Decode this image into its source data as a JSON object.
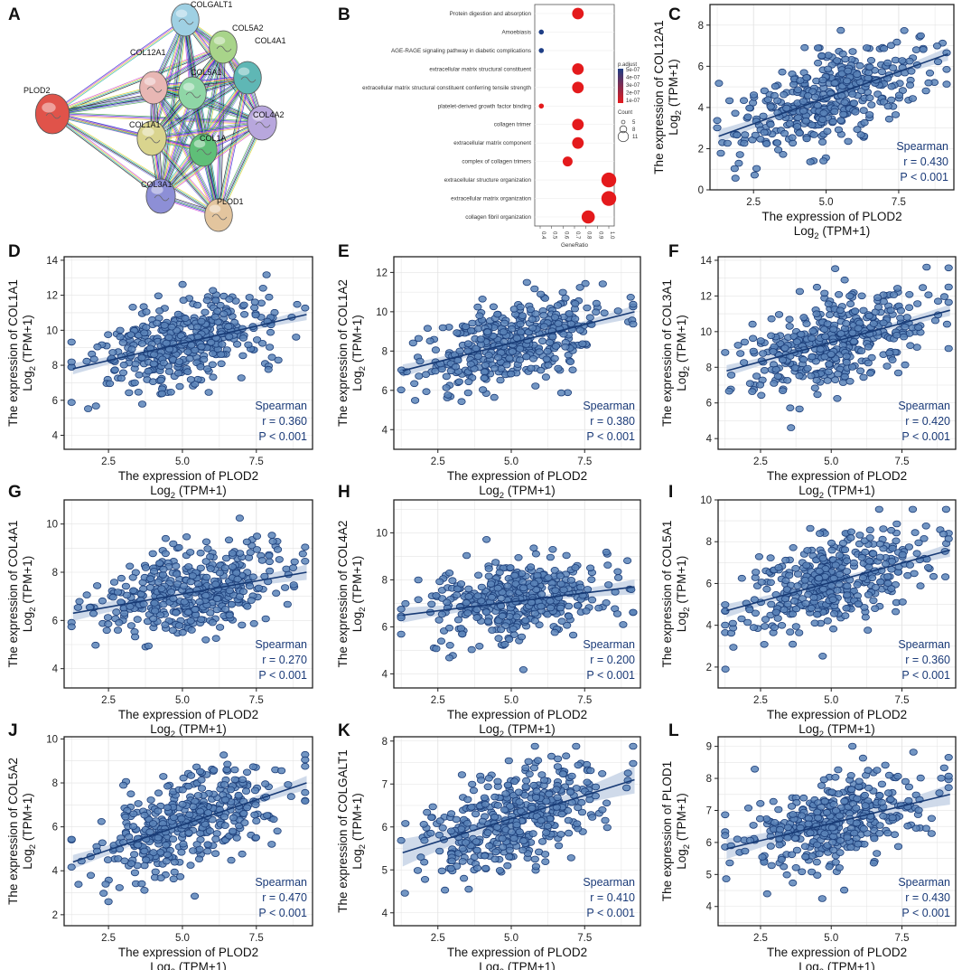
{
  "panel_labels": [
    "A",
    "B",
    "C",
    "D",
    "E",
    "F",
    "G",
    "H",
    "I",
    "J",
    "K",
    "L"
  ],
  "network": {
    "nodes": [
      {
        "name": "PLOD2",
        "color": "#e0534a"
      },
      {
        "name": "COLGALT1",
        "color": "#9fd0e3"
      },
      {
        "name": "COL5A2",
        "color": "#a8d48a"
      },
      {
        "name": "COL12A1",
        "color": "#e8b7b4"
      },
      {
        "name": "COL5A1",
        "color": "#8fd6a6"
      },
      {
        "name": "COL4A1",
        "color": "#5fb7b5"
      },
      {
        "name": "COL1A1",
        "color": "#d9d48e"
      },
      {
        "name": "COL4A2",
        "color": "#b8a7dd"
      },
      {
        "name": "COL1A",
        "color": "#5fbf78"
      },
      {
        "name": "COL3A1",
        "color": "#8d8fd6"
      },
      {
        "name": "PLOD1",
        "color": "#e3c59e"
      }
    ],
    "edge_colors": [
      "#3aa03a",
      "#2a2ad0",
      "#d040d0",
      "#e0d020",
      "#20b0b0",
      "#111111",
      "#7070e0"
    ]
  },
  "chart_data": [
    {
      "panel": "B",
      "type": "scatter",
      "subtype": "dotplot",
      "xlabel": "GeneRatio",
      "x_ticks": [
        "0.4",
        "0.5",
        "0.6",
        "0.7",
        "0.8",
        "0.9",
        "1.0"
      ],
      "xlim": [
        0.4,
        1.0
      ],
      "terms": [
        {
          "label": "Protein digestion and absorption",
          "ratio": 0.73,
          "count": 9,
          "p_level": "low"
        },
        {
          "label": "Amoebiasis",
          "ratio": 0.41,
          "count": 5,
          "p_level": "high"
        },
        {
          "label": "AGE-RAGE signaling pathway in diabetic complications",
          "ratio": 0.41,
          "count": 5,
          "p_level": "high"
        },
        {
          "label": "extracellular matrix structural constituent",
          "ratio": 0.73,
          "count": 9,
          "p_level": "low"
        },
        {
          "label": "extracellular matrix structural constituent conferring tensile strength",
          "ratio": 0.73,
          "count": 9,
          "p_level": "low"
        },
        {
          "label": "platelet-derived growth factor binding",
          "ratio": 0.41,
          "count": 5,
          "p_level": "low"
        },
        {
          "label": "collagen trimer",
          "ratio": 0.73,
          "count": 9,
          "p_level": "low"
        },
        {
          "label": "extracellular matrix component",
          "ratio": 0.73,
          "count": 9,
          "p_level": "low"
        },
        {
          "label": "complex of collagen trimers",
          "ratio": 0.64,
          "count": 8,
          "p_level": "low"
        },
        {
          "label": "extracellular structure organization",
          "ratio": 1.0,
          "count": 11,
          "p_level": "low"
        },
        {
          "label": "extracellular matrix organization",
          "ratio": 1.0,
          "count": 11,
          "p_level": "low"
        },
        {
          "label": "collagen fibril organization",
          "ratio": 0.82,
          "count": 10,
          "p_level": "low"
        }
      ],
      "legend_padj_title": "p.adjust",
      "legend_padj_ticks": [
        "5e-07",
        "4e-07",
        "3e-07",
        "2e-07",
        "1e-07"
      ],
      "legend_count_title": "Count",
      "legend_count_ticks": [
        "5",
        "8",
        "11"
      ]
    },
    {
      "panel": "C",
      "type": "scatter",
      "gene": "COL12A1",
      "ylabel": "The expression of COL12A1",
      "ylim": [
        0,
        9
      ],
      "y_ticks": [
        "0",
        "2",
        "4",
        "6",
        "8"
      ],
      "x_ticks": [
        "2.5",
        "5.0",
        "7.5"
      ],
      "xlim": [
        1,
        9.4
      ],
      "r": "r = 0.430",
      "p": "P < 0.001",
      "method": "Spearman",
      "fit": {
        "x0": 1.3,
        "y0": 2.6,
        "x1": 9.2,
        "y1": 6.6
      },
      "ymean": 4.4,
      "noise": 1.3
    },
    {
      "panel": "D",
      "type": "scatter",
      "gene": "COL1A1",
      "ylabel": "The expression of COL1A1",
      "ylim": [
        3.2,
        14.2
      ],
      "y_ticks": [
        "4",
        "6",
        "8",
        "10",
        "12",
        "14"
      ],
      "x_ticks": [
        "2.5",
        "5.0",
        "7.5"
      ],
      "xlim": [
        1,
        9.4
      ],
      "r": "r = 0.360",
      "p": "P < 0.001",
      "method": "Spearman",
      "fit": {
        "x0": 1.3,
        "y0": 7.8,
        "x1": 9.2,
        "y1": 10.9
      },
      "ymean": 9.3,
      "noise": 1.5
    },
    {
      "panel": "E",
      "type": "scatter",
      "gene": "COL1A2",
      "ylabel": "The expression of COL1A2",
      "ylim": [
        3.0,
        12.8
      ],
      "y_ticks": [
        "4",
        "6",
        "8",
        "10",
        "12"
      ],
      "x_ticks": [
        "2.5",
        "5.0",
        "7.5"
      ],
      "xlim": [
        1,
        9.4
      ],
      "r": "r = 0.380",
      "p": "P < 0.001",
      "method": "Spearman",
      "fit": {
        "x0": 1.3,
        "y0": 7.0,
        "x1": 9.2,
        "y1": 10.0
      },
      "ymean": 8.5,
      "noise": 1.3
    },
    {
      "panel": "F",
      "type": "scatter",
      "gene": "COL3A1",
      "ylabel": "The expression of COL3A1",
      "ylim": [
        3.4,
        14.2
      ],
      "y_ticks": [
        "4",
        "6",
        "8",
        "10",
        "12",
        "14"
      ],
      "x_ticks": [
        "2.5",
        "5.0",
        "7.5"
      ],
      "xlim": [
        1,
        9.4
      ],
      "r": "r = 0.420",
      "p": "P < 0.001",
      "method": "Spearman",
      "fit": {
        "x0": 1.3,
        "y0": 7.8,
        "x1": 9.2,
        "y1": 11.2
      },
      "ymean": 9.5,
      "noise": 1.4
    },
    {
      "panel": "G",
      "type": "scatter",
      "gene": "COL4A1",
      "ylabel": "The expression of COL4A1",
      "ylim": [
        3.2,
        11.0
      ],
      "y_ticks": [
        "4",
        "6",
        "8",
        "10"
      ],
      "x_ticks": [
        "2.5",
        "5.0",
        "7.5"
      ],
      "xlim": [
        1,
        9.4
      ],
      "r": "r = 0.270",
      "p": "P < 0.001",
      "method": "Spearman",
      "fit": {
        "x0": 1.3,
        "y0": 6.3,
        "x1": 9.2,
        "y1": 8.0
      },
      "ymean": 7.1,
      "noise": 1.0
    },
    {
      "panel": "H",
      "type": "scatter",
      "gene": "COL4A2",
      "ylabel": "The expression of COL4A2",
      "ylim": [
        3.4,
        11.4
      ],
      "y_ticks": [
        "4",
        "6",
        "8",
        "10"
      ],
      "x_ticks": [
        "2.5",
        "5.0",
        "7.5"
      ],
      "xlim": [
        1,
        9.4
      ],
      "r": "r = 0.200",
      "p": "P < 0.001",
      "method": "Spearman",
      "fit": {
        "x0": 1.3,
        "y0": 6.5,
        "x1": 9.2,
        "y1": 7.7
      },
      "ymean": 7.1,
      "noise": 1.0
    },
    {
      "panel": "I",
      "type": "scatter",
      "gene": "COL5A1",
      "ylabel": "The expression of COL5A1",
      "ylim": [
        1.0,
        10.0
      ],
      "y_ticks": [
        "2",
        "4",
        "6",
        "8",
        "10"
      ],
      "x_ticks": [
        "2.5",
        "5.0",
        "7.5"
      ],
      "xlim": [
        1,
        9.4
      ],
      "r": "r = 0.360",
      "p": "P < 0.001",
      "method": "Spearman",
      "fit": {
        "x0": 1.3,
        "y0": 4.7,
        "x1": 9.2,
        "y1": 7.6
      },
      "ymean": 6.1,
      "noise": 1.3
    },
    {
      "panel": "J",
      "type": "scatter",
      "gene": "COL5A2",
      "ylabel": "The expression of COL5A2",
      "ylim": [
        1.5,
        10.1
      ],
      "y_ticks": [
        "2",
        "4",
        "6",
        "8",
        "10"
      ],
      "x_ticks": [
        "2.5",
        "5.0",
        "7.5"
      ],
      "xlim": [
        1,
        9.4
      ],
      "r": "r = 0.470",
      "p": "P < 0.001",
      "method": "Spearman",
      "fit": {
        "x0": 1.3,
        "y0": 4.4,
        "x1": 9.2,
        "y1": 8.0
      },
      "ymean": 6.2,
      "noise": 1.3
    },
    {
      "panel": "K",
      "type": "scatter",
      "gene": "COLGALT1",
      "ylabel": "The expression of COLGALT1",
      "ylim": [
        3.7,
        8.1
      ],
      "y_ticks": [
        "4",
        "5",
        "6",
        "7",
        "8"
      ],
      "x_ticks": [
        "2.5",
        "5.0",
        "7.5"
      ],
      "xlim": [
        1,
        9.4
      ],
      "r": "r = 0.410",
      "p": "P < 0.001",
      "method": "Spearman",
      "fit": {
        "x0": 1.3,
        "y0": 5.4,
        "x1": 9.2,
        "y1": 7.1
      },
      "ymean": 6.3,
      "noise": 0.7
    },
    {
      "panel": "L",
      "type": "scatter",
      "gene": "PLOD1",
      "ylabel": "The expression of PLOD1",
      "ylim": [
        3.4,
        9.3
      ],
      "y_ticks": [
        "4",
        "5",
        "6",
        "7",
        "8",
        "9"
      ],
      "x_ticks": [
        "2.5",
        "5.0",
        "7.5"
      ],
      "xlim": [
        1,
        9.4
      ],
      "r": "r = 0.430",
      "p": "P < 0.001",
      "method": "Spearman",
      "fit": {
        "x0": 1.3,
        "y0": 5.8,
        "x1": 9.2,
        "y1": 7.5
      },
      "ymean": 6.6,
      "noise": 0.8
    }
  ],
  "shared": {
    "xlabel_line1": "The expression of PLOD2",
    "xlabel_line2_base": "Log",
    "xlabel_line2_sub": "2",
    "xlabel_line2_rest": " (TPM+1)",
    "ylabel_line2_base": "Log",
    "ylabel_line2_sub": "2",
    "ylabel_line2_rest": " (TPM+1)",
    "method_label": "Spearman"
  },
  "colors": {
    "dot_fill": "#5b84b9",
    "dot_stroke": "#1d3f7a",
    "fit_line": "#173a75",
    "ci_band": "#c7d4e6",
    "grid": "#e3e3e3",
    "go_red": "#e41a1c",
    "go_blue": "#1f3f86"
  }
}
